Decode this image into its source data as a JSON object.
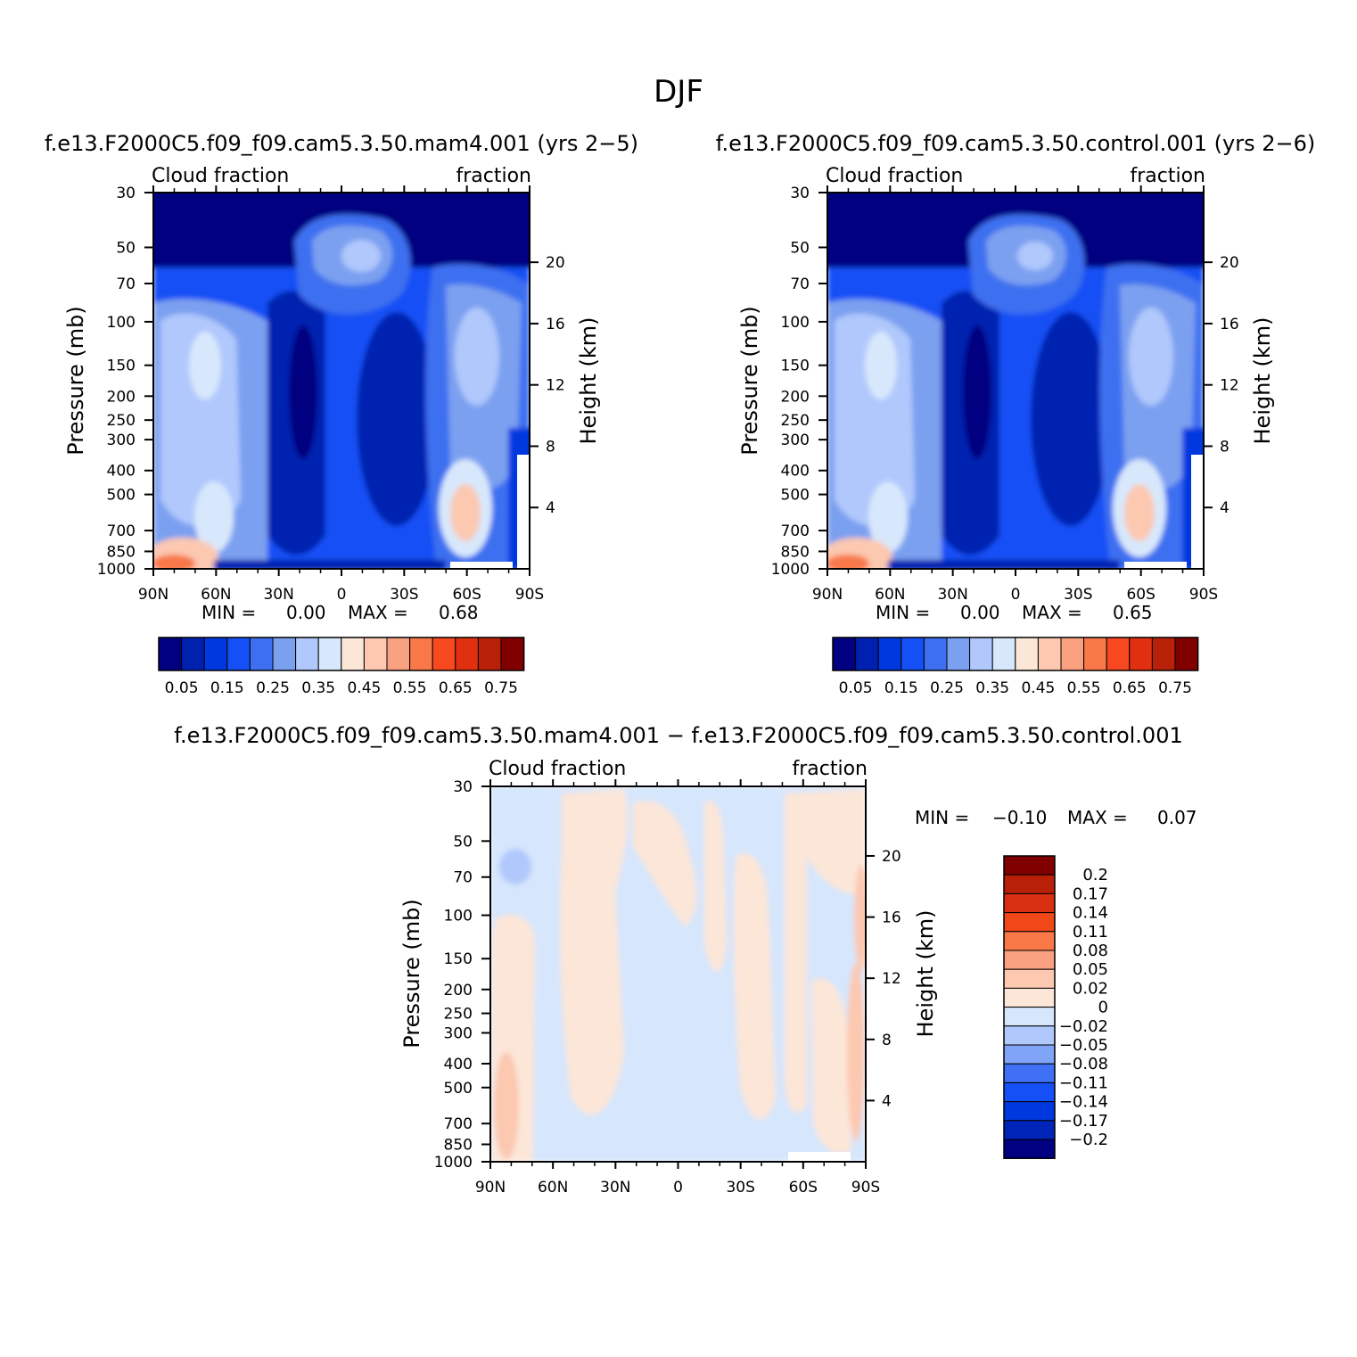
{
  "figure_title": "DJF",
  "colors": {
    "abs_scale": [
      "#000080",
      "#0020b0",
      "#0038e0",
      "#1450f5",
      "#3c70f0",
      "#7ca0f0",
      "#b0c8fc",
      "#d8e8fc",
      "#fce6d8",
      "#fcc8b0",
      "#f8a080",
      "#f87848",
      "#f84820",
      "#e03010",
      "#b82008",
      "#800000"
    ],
    "diff_scale": [
      "#000080",
      "#0024b8",
      "#0038e0",
      "#1450f5",
      "#4070f5",
      "#80a4f8",
      "#b0c8fc",
      "#d6e6fc",
      "#fce6d8",
      "#fcc8b0",
      "#f8a080",
      "#f87848",
      "#f04818",
      "#d83010",
      "#b82008",
      "#800000"
    ]
  },
  "panels": [
    {
      "id": "mam4",
      "title": "f.e13.F2000C5.f09_f09.cam5.3.50.mam4.001 (yrs 2−5)",
      "left_string": "Cloud fraction",
      "right_string": "fraction",
      "ylabel_left": "Pressure (mb)",
      "ylabel_right": "Height (km)",
      "min_label": "MIN =",
      "min_value": "0.00",
      "max_label": "MAX =",
      "max_value": "0.68"
    },
    {
      "id": "control",
      "title": "f.e13.F2000C5.f09_f09.cam5.3.50.control.001 (yrs 2−6)",
      "left_string": "Cloud fraction",
      "right_string": "fraction",
      "ylabel_left": "Pressure (mb)",
      "ylabel_right": "Height (km)",
      "min_label": "MIN =",
      "min_value": "0.00",
      "max_label": "MAX =",
      "max_value": "0.65"
    },
    {
      "id": "diff",
      "title": "f.e13.F2000C5.f09_f09.cam5.3.50.mam4.001 − f.e13.F2000C5.f09_f09.cam5.3.50.control.001",
      "left_string": "Cloud fraction",
      "right_string": "fraction",
      "ylabel_left": "Pressure (mb)",
      "ylabel_right": "Height (km)",
      "min_label": "MIN =",
      "min_value": "−0.10",
      "max_label": "MAX =",
      "max_value": "0.07"
    }
  ],
  "chart_data": [
    {
      "type": "heatmap",
      "title": "f.e13.F2000C5.f09_f09.cam5.3.50.mam4.001 (yrs 2−5)",
      "variable": "Cloud fraction",
      "x_ticks": [
        "90N",
        "60N",
        "30N",
        "0",
        "30S",
        "60S",
        "90S"
      ],
      "x_tick_values": [
        90,
        60,
        30,
        0,
        -30,
        -60,
        -90
      ],
      "y_ticks_pressure": [
        "30",
        "50",
        "70",
        "100",
        "150",
        "200",
        "250",
        "300",
        "400",
        "500",
        "700",
        "850",
        "1000"
      ],
      "y_tick_values_pressure": [
        30,
        50,
        70,
        100,
        150,
        200,
        250,
        300,
        400,
        500,
        700,
        850,
        1000
      ],
      "y_ticks_height": [
        "20",
        "16",
        "12",
        "8",
        "4"
      ],
      "y_tick_values_height": [
        20,
        16,
        12,
        8,
        4
      ],
      "colorbar_labels": [
        "0.05",
        "0.15",
        "0.25",
        "0.35",
        "0.45",
        "0.55",
        "0.65",
        "0.75"
      ],
      "contour_levels": [
        0.05,
        0.1,
        0.15,
        0.2,
        0.25,
        0.3,
        0.35,
        0.4,
        0.45,
        0.5,
        0.55,
        0.6,
        0.65,
        0.7,
        0.75
      ],
      "min": 0.0,
      "max": 0.68
    },
    {
      "type": "heatmap",
      "title": "f.e13.F2000C5.f09_f09.cam5.3.50.control.001 (yrs 2−6)",
      "variable": "Cloud fraction",
      "x_ticks": [
        "90N",
        "60N",
        "30N",
        "0",
        "30S",
        "60S",
        "90S"
      ],
      "x_tick_values": [
        90,
        60,
        30,
        0,
        -30,
        -60,
        -90
      ],
      "y_ticks_pressure": [
        "30",
        "50",
        "70",
        "100",
        "150",
        "200",
        "250",
        "300",
        "400",
        "500",
        "700",
        "850",
        "1000"
      ],
      "y_tick_values_pressure": [
        30,
        50,
        70,
        100,
        150,
        200,
        250,
        300,
        400,
        500,
        700,
        850,
        1000
      ],
      "y_ticks_height": [
        "20",
        "16",
        "12",
        "8",
        "4"
      ],
      "y_tick_values_height": [
        20,
        16,
        12,
        8,
        4
      ],
      "colorbar_labels": [
        "0.05",
        "0.15",
        "0.25",
        "0.35",
        "0.45",
        "0.55",
        "0.65",
        "0.75"
      ],
      "contour_levels": [
        0.05,
        0.1,
        0.15,
        0.2,
        0.25,
        0.3,
        0.35,
        0.4,
        0.45,
        0.5,
        0.55,
        0.6,
        0.65,
        0.7,
        0.75
      ],
      "min": 0.0,
      "max": 0.65
    },
    {
      "type": "heatmap",
      "title": "f.e13.F2000C5.f09_f09.cam5.3.50.mam4.001 − f.e13.F2000C5.f09_f09.cam5.3.50.control.001",
      "variable": "Cloud fraction",
      "x_ticks": [
        "90N",
        "60N",
        "30N",
        "0",
        "30S",
        "60S",
        "90S"
      ],
      "x_tick_values": [
        90,
        60,
        30,
        0,
        -30,
        -60,
        -90
      ],
      "y_ticks_pressure": [
        "30",
        "50",
        "70",
        "100",
        "150",
        "200",
        "250",
        "300",
        "400",
        "500",
        "700",
        "850",
        "1000"
      ],
      "y_tick_values_pressure": [
        30,
        50,
        70,
        100,
        150,
        200,
        250,
        300,
        400,
        500,
        700,
        850,
        1000
      ],
      "y_ticks_height": [
        "20",
        "16",
        "12",
        "8",
        "4"
      ],
      "y_tick_values_height": [
        20,
        16,
        12,
        8,
        4
      ],
      "colorbar_labels": [
        "0.2",
        "0.17",
        "0.14",
        "0.11",
        "0.08",
        "0.05",
        "0.02",
        "0",
        "−0.02",
        "−0.05",
        "−0.08",
        "−0.11",
        "−0.14",
        "−0.17",
        "−0.2"
      ],
      "contour_levels": [
        -0.2,
        -0.17,
        -0.14,
        -0.11,
        -0.08,
        -0.05,
        -0.02,
        0,
        0.02,
        0.05,
        0.08,
        0.11,
        0.14,
        0.17,
        0.2
      ],
      "min": -0.1,
      "max": 0.07
    }
  ]
}
